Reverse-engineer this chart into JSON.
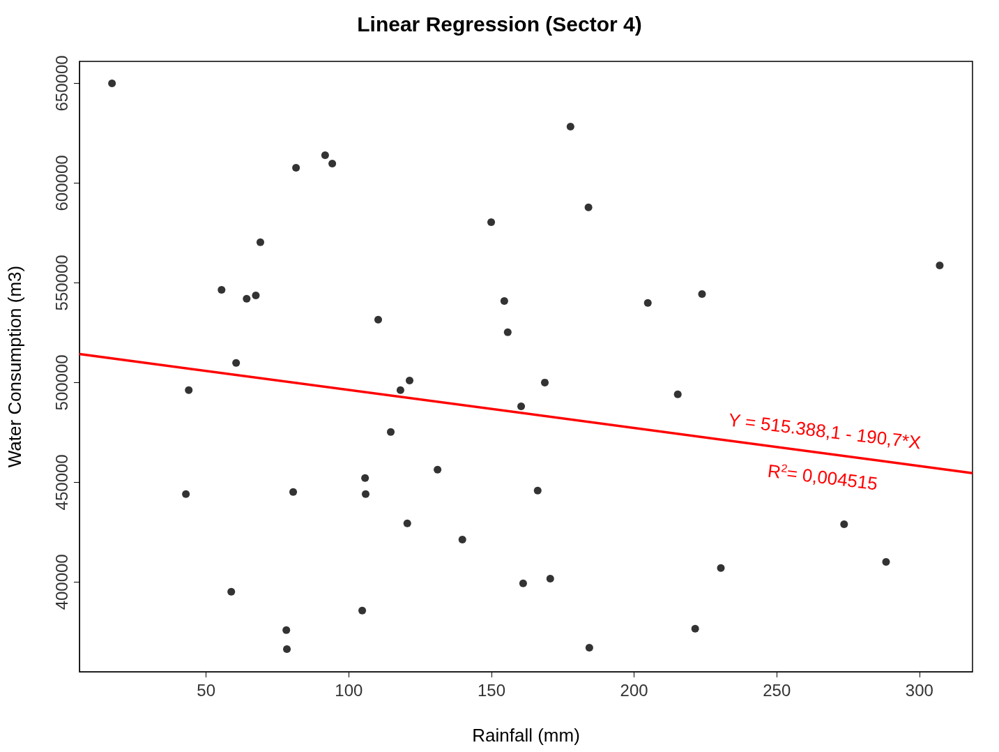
{
  "chart_data": {
    "type": "scatter",
    "title": "Linear Regression (Sector 4)",
    "xlabel": "Rainfall (mm)",
    "ylabel": "Water Consumption (m3)",
    "xlim": [
      5.6,
      318.6
    ],
    "ylim": [
      355000,
      661000
    ],
    "xticks": [
      50,
      100,
      150,
      200,
      250,
      300
    ],
    "yticks": [
      400000,
      450000,
      500000,
      550000,
      600000,
      650000
    ],
    "grid": false,
    "marker": "circle",
    "series": [
      {
        "color": "#000000",
        "x": [
          17.0,
          177.7,
          91.7,
          94.2,
          81.5,
          184.0,
          149.9,
          69.0,
          307.1,
          55.4,
          67.4,
          64.2,
          223.8,
          154.5,
          204.8,
          110.3,
          155.7,
          60.5,
          121.3,
          168.7,
          118.1,
          43.9,
          215.3,
          160.4,
          114.7,
          131.1,
          105.7,
          105.9,
          42.9,
          80.5,
          166.2,
          120.5,
          273.6,
          139.8,
          288.3,
          230.4,
          170.6,
          161.1,
          58.8,
          104.7,
          78.1,
          221.4,
          78.3,
          184.3
        ],
        "values": [
          650000,
          628300,
          614000,
          609800,
          607700,
          587800,
          580400,
          570300,
          558700,
          546500,
          543700,
          542000,
          544400,
          540900,
          539900,
          531500,
          525200,
          509800,
          501000,
          500000,
          496200,
          496200,
          494100,
          488100,
          475200,
          456300,
          452100,
          444100,
          444100,
          445100,
          445800,
          429400,
          429000,
          421300,
          410100,
          407000,
          401700,
          399300,
          395100,
          385700,
          375900,
          376600,
          366400,
          367100
        ]
      },
      {
        "type": "line",
        "color": "#ff0000",
        "line_style": "solid",
        "marker": "none",
        "x": [
          5.6,
          318.6
        ],
        "values": [
          514300,
          454600
        ]
      }
    ],
    "annotations": [
      "Y = 515.388,1 - 190,7*X",
      "R$^{2}$= 0,004515"
    ]
  }
}
